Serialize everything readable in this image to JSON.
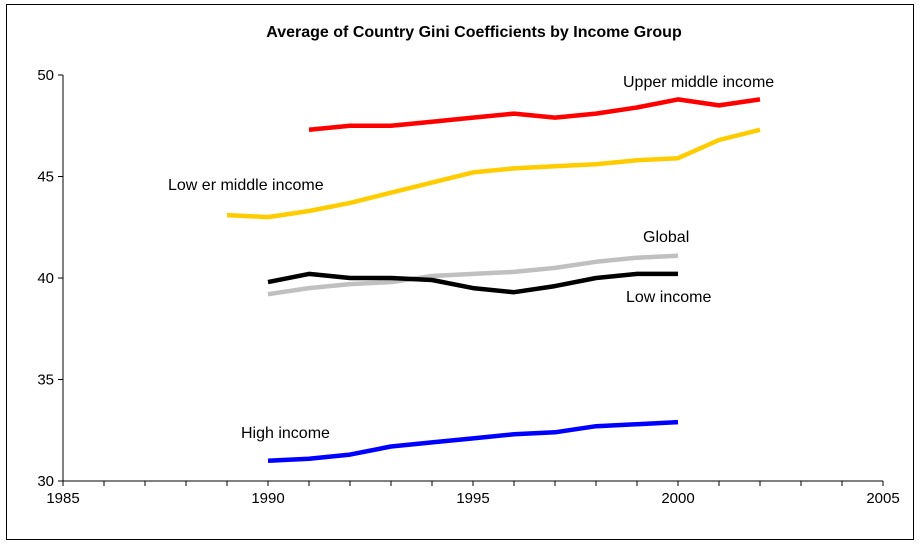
{
  "chart_data": {
    "type": "line",
    "title": "Average of Country Gini Coefficients by Income Group",
    "xlabel": "",
    "ylabel": "",
    "xlim": [
      1985,
      2005
    ],
    "ylim": [
      30,
      50
    ],
    "x_ticks": [
      1985,
      1990,
      1995,
      2000,
      2005
    ],
    "y_ticks": [
      30,
      35,
      40,
      45,
      50
    ],
    "grid": false,
    "legend": "none (series labeled directly on chart)",
    "series": [
      {
        "name": "Upper middle income",
        "color": "#ff0000",
        "x": [
          1991,
          1992,
          1993,
          1994,
          1995,
          1996,
          1997,
          1998,
          1999,
          2000,
          2001,
          2002
        ],
        "values": [
          47.3,
          47.5,
          47.5,
          47.7,
          47.9,
          48.1,
          47.9,
          48.1,
          48.4,
          48.8,
          48.5,
          48.8
        ]
      },
      {
        "name": "Lower middle income",
        "label_text": "Low er middle income",
        "color": "#ffcc00",
        "x": [
          1989,
          1990,
          1991,
          1992,
          1993,
          1994,
          1995,
          1996,
          1997,
          1998,
          1999,
          2000,
          2001,
          2002
        ],
        "values": [
          43.1,
          43.0,
          43.3,
          43.7,
          44.2,
          44.7,
          45.2,
          45.4,
          45.5,
          45.6,
          45.8,
          45.9,
          46.8,
          47.3
        ]
      },
      {
        "name": "Global",
        "color": "#c0c0c0",
        "x": [
          1990,
          1991,
          1992,
          1993,
          1994,
          1995,
          1996,
          1997,
          1998,
          1999,
          2000
        ],
        "values": [
          39.2,
          39.5,
          39.7,
          39.8,
          40.1,
          40.2,
          40.3,
          40.5,
          40.8,
          41.0,
          41.1
        ]
      },
      {
        "name": "Low income",
        "color": "#000000",
        "x": [
          1990,
          1991,
          1992,
          1993,
          1994,
          1995,
          1996,
          1997,
          1998,
          1999,
          2000
        ],
        "values": [
          39.8,
          40.2,
          40.0,
          40.0,
          39.9,
          39.5,
          39.3,
          39.6,
          40.0,
          40.2,
          40.2
        ]
      },
      {
        "name": "High income",
        "color": "#0000ff",
        "x": [
          1990,
          1991,
          1992,
          1993,
          1994,
          1995,
          1996,
          1997,
          1998,
          1999,
          2000
        ],
        "values": [
          31.0,
          31.1,
          31.3,
          31.7,
          31.9,
          32.1,
          32.3,
          32.4,
          32.7,
          32.8,
          32.9
        ]
      }
    ]
  }
}
